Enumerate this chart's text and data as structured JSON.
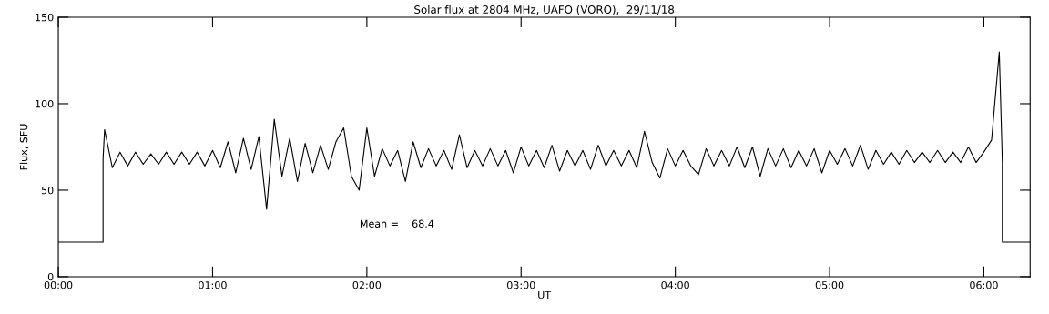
{
  "chart_data": {
    "type": "line",
    "title": "Solar flux at 2804 MHz, UAFO (VORO),  29/11/18",
    "xlabel": "UT",
    "ylabel": "Flux, SFU",
    "annotations": [
      "Mean =    68.4"
    ],
    "series": [
      {
        "color": "#000000",
        "x": [
          0,
          0.29,
          0.29,
          0.3,
          0.35,
          0.4,
          0.45,
          0.5,
          0.55,
          0.6,
          0.65,
          0.7,
          0.75,
          0.8,
          0.85,
          0.9,
          0.95,
          1.0,
          1.05,
          1.1,
          1.15,
          1.2,
          1.25,
          1.3,
          1.35,
          1.4,
          1.45,
          1.5,
          1.55,
          1.6,
          1.65,
          1.7,
          1.75,
          1.8,
          1.85,
          1.9,
          1.95,
          2.0,
          2.05,
          2.1,
          2.15,
          2.2,
          2.25,
          2.3,
          2.35,
          2.4,
          2.45,
          2.5,
          2.55,
          2.6,
          2.65,
          2.7,
          2.75,
          2.8,
          2.85,
          2.9,
          2.95,
          3.0,
          3.05,
          3.1,
          3.15,
          3.2,
          3.25,
          3.3,
          3.35,
          3.4,
          3.45,
          3.5,
          3.55,
          3.6,
          3.65,
          3.7,
          3.75,
          3.8,
          3.85,
          3.9,
          3.95,
          4.0,
          4.05,
          4.1,
          4.15,
          4.2,
          4.25,
          4.3,
          4.35,
          4.4,
          4.45,
          4.5,
          4.55,
          4.6,
          4.65,
          4.7,
          4.75,
          4.8,
          4.85,
          4.9,
          4.95,
          5.0,
          5.05,
          5.1,
          5.15,
          5.2,
          5.25,
          5.3,
          5.35,
          5.4,
          5.45,
          5.5,
          5.55,
          5.6,
          5.65,
          5.7,
          5.75,
          5.8,
          5.85,
          5.9,
          5.95,
          6.0,
          6.05,
          6.1,
          6.12,
          6.12,
          6.3
        ],
        "values": [
          20,
          20,
          68,
          85,
          63,
          72,
          64,
          72,
          65,
          71,
          65,
          72,
          65,
          72,
          65,
          72,
          64,
          73,
          63,
          78,
          60,
          80,
          62,
          81,
          39,
          91,
          58,
          80,
          55,
          77,
          60,
          76,
          62,
          78,
          86,
          58,
          50,
          86,
          58,
          74,
          64,
          73,
          55,
          78,
          63,
          74,
          64,
          73,
          62,
          82,
          63,
          73,
          64,
          74,
          64,
          73,
          60,
          75,
          64,
          73,
          63,
          76,
          61,
          73,
          64,
          73,
          62,
          76,
          64,
          73,
          64,
          73,
          63,
          84,
          66,
          57,
          74,
          64,
          73,
          64,
          59,
          74,
          64,
          73,
          64,
          75,
          63,
          75,
          58,
          74,
          64,
          74,
          63,
          73,
          64,
          74,
          60,
          73,
          65,
          74,
          64,
          76,
          62,
          73,
          65,
          72,
          65,
          73,
          66,
          72,
          66,
          73,
          66,
          72,
          66,
          75,
          66,
          72,
          79,
          130,
          66,
          20,
          20
        ]
      }
    ],
    "xlim": [
      0,
      6.3
    ],
    "xticks": [
      {
        "value": 0,
        "label": "00:00"
      },
      {
        "value": 1,
        "label": "01:00"
      },
      {
        "value": 2,
        "label": "02:00"
      },
      {
        "value": 3,
        "label": "03:00"
      },
      {
        "value": 4,
        "label": "04:00"
      },
      {
        "value": 5,
        "label": "05:00"
      },
      {
        "value": 6,
        "label": "06:00"
      }
    ],
    "ylim": [
      0,
      150
    ],
    "yticks": [
      0,
      50,
      100,
      150
    ],
    "grid": false,
    "legend": false,
    "marker": "none",
    "line_style": "solid"
  }
}
